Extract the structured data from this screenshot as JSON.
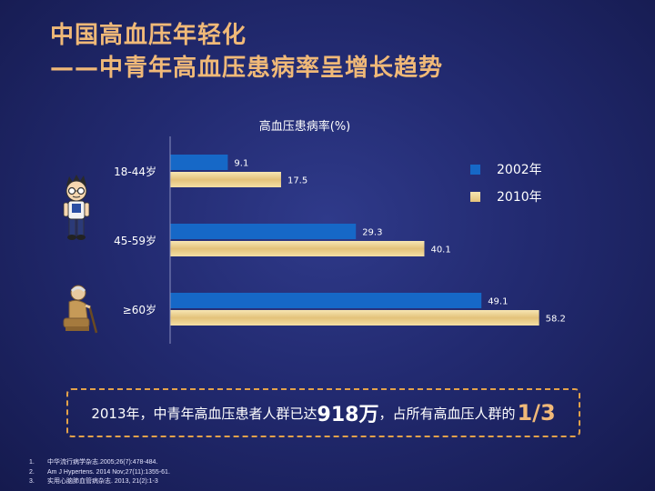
{
  "title_line1": "中国高血压年轻化",
  "title_line2": "——中青年高血压患病率呈增长趋势",
  "chart_data": {
    "type": "bar",
    "orientation": "horizontal",
    "title": "高血压患病率(%)",
    "categories": [
      "18-44岁",
      "45-59岁",
      "≥60岁"
    ],
    "series": [
      {
        "name": "2002年",
        "values": [
          9.1,
          29.3,
          49.1
        ],
        "color": "#1668c7"
      },
      {
        "name": "2010年",
        "values": [
          17.5,
          40.1,
          58.2
        ],
        "color": "#e8cf8e"
      }
    ],
    "xlim": [
      0,
      65
    ],
    "legend_position": "right",
    "grid": false
  },
  "callout": {
    "part1": "2013年，中青年高血压患者人群已达",
    "highlight1": "918万",
    "part2": "，占所有高血压人群的",
    "highlight2": "1/3"
  },
  "references": [
    {
      "n": "1.",
      "text": "中华流行病学杂志.2005;26(7):478-484."
    },
    {
      "n": "2.",
      "text": "Am J Hypertens. 2014 Nov;27(11):1355-61."
    },
    {
      "n": "3.",
      "text": "实用心脑肺血管病杂志. 2013, 21(2):1-3"
    }
  ]
}
